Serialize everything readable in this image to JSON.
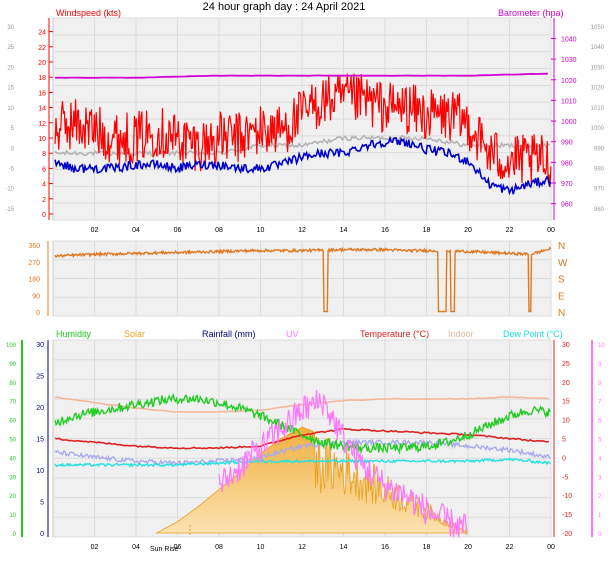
{
  "title": "24 hour graph day : 24 April 2021",
  "colors": {
    "panel_bg": "#f0f0f0",
    "grid": "#dcdcdc",
    "wind_gust": "#ff0000",
    "wind_avg": "#0000cc",
    "wind_gray": "#b4b4b4",
    "baro": "#d400d4",
    "direction": "#e07820",
    "humidity": "#22cc22",
    "solar": "#e8a020",
    "rainfall": "#000080",
    "uv": "#ff77ff",
    "temperature": "#dd2222",
    "indoor": "#f0b89a",
    "dewpoint": "#20e0e0",
    "lilac": "#aaaaee"
  },
  "chart_data": [
    {
      "type": "line",
      "panel": "wind_baro",
      "title": "24 hour graph day : 24 April 2021",
      "left_label": "Windspeed (kts)",
      "right_label": "Barometer (hpa)",
      "x_ticks": [
        "02",
        "04",
        "06",
        "08",
        "10",
        "12",
        "14",
        "16",
        "18",
        "20",
        "22",
        "00"
      ],
      "y_left_ticks": [
        "24",
        "22",
        "20",
        "18",
        "16",
        "14",
        "12",
        "10",
        "8",
        "6",
        "4",
        "2",
        "0"
      ],
      "y_left_outer_ticks": [
        "30",
        "25",
        "20",
        "15",
        "10",
        "5",
        "0",
        "-5",
        "-10",
        "-15"
      ],
      "y_right_ticks": [
        "1040",
        "1030",
        "1020",
        "1010",
        "1000",
        "990",
        "980",
        "970",
        "960"
      ],
      "y_right_outer_ticks": [
        "1050",
        "1040",
        "1030",
        "1020",
        "1010",
        "1000",
        "990",
        "980",
        "970",
        "960"
      ],
      "ylim_left": [
        0,
        25
      ],
      "ylim_right": [
        955,
        1047
      ],
      "series": [
        {
          "name": "Windspeed (kts)",
          "role": "gust",
          "x": [
            0,
            1,
            2,
            3,
            4,
            5,
            6,
            7,
            8,
            9,
            10,
            11,
            12,
            13,
            14,
            15,
            16,
            17,
            18,
            19,
            20,
            21,
            22,
            23,
            24
          ],
          "values": [
            11,
            12,
            11,
            10,
            10,
            11,
            10,
            9,
            10,
            10,
            11,
            11,
            13,
            15,
            15,
            15,
            14,
            14,
            13,
            13,
            12,
            8,
            7,
            7,
            7
          ]
        },
        {
          "name": "",
          "role": "mean",
          "x": [
            0,
            1,
            2,
            3,
            4,
            5,
            6,
            7,
            8,
            9,
            10,
            11,
            12,
            13,
            14,
            15,
            16,
            17,
            18,
            19,
            20,
            21,
            22,
            23,
            24
          ],
          "values": [
            7,
            6,
            6,
            6,
            6.5,
            6.5,
            6,
            6.5,
            6.5,
            6,
            6,
            6.5,
            7.5,
            8,
            8,
            9,
            9.5,
            9.5,
            8.5,
            8,
            7,
            4,
            3,
            4,
            4.5
          ]
        },
        {
          "name": "",
          "role": "secondary",
          "x": [
            0,
            2,
            4,
            6,
            8,
            10,
            12,
            14,
            16,
            18,
            20,
            22,
            24
          ],
          "values": [
            8,
            8,
            8,
            8,
            8,
            9,
            9,
            10,
            10,
            10,
            9,
            9,
            9
          ]
        },
        {
          "name": "Barometer (hpa)",
          "role": "pressure",
          "x": [
            0,
            4,
            8,
            12,
            16,
            20,
            24
          ],
          "values": [
            1021,
            1021,
            1022,
            1022,
            1022,
            1022,
            1023
          ]
        }
      ]
    },
    {
      "type": "line",
      "panel": "wind_direction",
      "y_ticks": [
        "360",
        "270",
        "180",
        "90",
        "0"
      ],
      "compass": [
        "N",
        "W",
        "S",
        "E",
        "N"
      ],
      "ylim": [
        0,
        360
      ],
      "series": [
        {
          "name": "",
          "x": [
            0,
            1,
            2,
            3,
            4,
            5,
            6,
            7,
            8,
            9,
            10,
            11,
            12,
            13,
            14,
            15,
            16,
            17,
            18,
            19,
            20,
            21,
            22,
            23,
            24
          ],
          "values": [
            300,
            305,
            310,
            312,
            315,
            318,
            320,
            322,
            325,
            328,
            330,
            330,
            330,
            332,
            335,
            335,
            335,
            330,
            330,
            328,
            325,
            320,
            315,
            310,
            340
          ]
        }
      ],
      "dips": [
        [
          13.05,
          13.25
        ],
        [
          18.55,
          18.95
        ],
        [
          19.15,
          19.35
        ],
        [
          22.9,
          23.05
        ]
      ]
    },
    {
      "type": "line",
      "panel": "environment",
      "legend": [
        "Humidity",
        "Solar",
        "Rainfall (mm)",
        "UV",
        "Temperature (°C)",
        "Indoor",
        "Dew Point (°C)"
      ],
      "annotations": [
        "Sun Rise"
      ],
      "x_ticks": [
        "02",
        "04",
        "06",
        "08",
        "10",
        "12",
        "14",
        "16",
        "18",
        "20",
        "22",
        "00"
      ],
      "y_humidity_ticks": [
        "100",
        "90",
        "80",
        "70",
        "60",
        "50",
        "40",
        "30",
        "20",
        "10",
        "0"
      ],
      "y_rain_ticks": [
        "30",
        "25",
        "20",
        "15",
        "10",
        "5",
        "0"
      ],
      "y_temp_ticks": [
        "30",
        "25",
        "20",
        "15",
        "10",
        "5",
        "0",
        "-5",
        "-10",
        "-15",
        "-20"
      ],
      "y_uv_ticks": [
        "10",
        "9",
        "8",
        "7",
        "6",
        "5",
        "4",
        "3",
        "2",
        "1",
        "0"
      ],
      "ylim_humidity": [
        0,
        100
      ],
      "ylim_temp": [
        -20,
        30
      ],
      "ylim_solar": [
        0,
        1000
      ],
      "series": [
        {
          "name": "Humidity",
          "x": [
            0,
            1,
            2,
            3,
            4,
            5,
            6,
            7,
            8,
            9,
            10,
            11,
            12,
            13,
            14,
            15,
            16,
            17,
            18,
            19,
            20,
            21,
            22,
            23,
            24
          ],
          "values": [
            58,
            62,
            64,
            66,
            68,
            70,
            71,
            71,
            69,
            66,
            62,
            57,
            52,
            48,
            46,
            45,
            45,
            45,
            46,
            48,
            52,
            57,
            62,
            65,
            64
          ]
        },
        {
          "name": "Indoor",
          "x": [
            0,
            2,
            4,
            6,
            8,
            10,
            12,
            14,
            16,
            18,
            20,
            22,
            24
          ],
          "values": [
            16,
            14.5,
            13,
            12,
            12,
            12.5,
            14,
            15,
            15.5,
            15.5,
            15.5,
            16,
            15.5
          ]
        },
        {
          "name": "Temperature (°C)",
          "x": [
            0,
            2,
            4,
            6,
            8,
            10,
            12,
            14,
            16,
            18,
            20,
            22,
            24
          ],
          "values": [
            5,
            4,
            3,
            2.5,
            2.5,
            3,
            6,
            7.5,
            7,
            6.5,
            6,
            5,
            4
          ]
        },
        {
          "name": "",
          "role": "lilac",
          "x": [
            0,
            2,
            4,
            6,
            8,
            10,
            12,
            14,
            16,
            18,
            20,
            22,
            24
          ],
          "values": [
            1.5,
            0,
            -1,
            -1.5,
            -1,
            0,
            3,
            4,
            4,
            4,
            3,
            2,
            0
          ]
        },
        {
          "name": "Dew Point (°C)",
          "x": [
            0,
            2,
            4,
            6,
            8,
            10,
            12,
            14,
            16,
            18,
            20,
            22,
            24
          ],
          "values": [
            -2,
            -2,
            -2,
            -2,
            -1.5,
            -1,
            -1,
            -1,
            -1,
            -1,
            -1,
            -0.5,
            -1.5
          ]
        },
        {
          "name": "Solar",
          "x": [
            5,
            6,
            7,
            8,
            9,
            10,
            11,
            12,
            13,
            14,
            15,
            16,
            17,
            18,
            19,
            20
          ],
          "values": [
            0,
            60,
            140,
            230,
            320,
            420,
            500,
            560,
            520,
            480,
            400,
            320,
            250,
            170,
            80,
            0
          ]
        },
        {
          "name": "UV",
          "x": [
            8,
            9,
            10,
            11,
            12,
            13,
            14,
            15,
            16,
            17,
            18,
            19,
            20
          ],
          "values": [
            2.5,
            3.5,
            4.5,
            5.5,
            6.5,
            7,
            5,
            3.5,
            2.5,
            2,
            1.2,
            0.6,
            0.2
          ]
        }
      ]
    }
  ]
}
